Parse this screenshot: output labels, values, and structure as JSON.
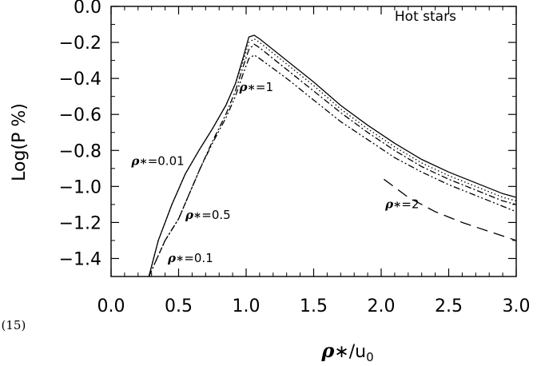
{
  "chart_data": {
    "type": "line",
    "xlabel": "ρ∗/u₀",
    "ylabel": "Log(P %)",
    "xlim": [
      0.0,
      3.0
    ],
    "ylim": [
      -1.5,
      0.0
    ],
    "xticks": [
      "0.0",
      "0.5",
      "1.0",
      "1.5",
      "2.0",
      "2.5",
      "3.0"
    ],
    "yticks": [
      "0.0",
      "−0.2",
      "−0.4",
      "−0.6",
      "−0.8",
      "−1.0",
      "−1.2",
      "−1.4"
    ],
    "grid": false,
    "annotations": [
      {
        "text": "Hot stars",
        "x": 2.1,
        "y": -0.08
      },
      {
        "sym": "ρ∗",
        "text": "=1",
        "x": 0.95,
        "y": -0.47
      },
      {
        "sym": "ρ∗",
        "text": "=0.01",
        "x": 0.15,
        "y": -0.88
      },
      {
        "sym": "ρ∗",
        "text": "=0.5",
        "x": 0.55,
        "y": -1.18
      },
      {
        "sym": "ρ∗",
        "text": "=0.1",
        "x": 0.42,
        "y": -1.42
      },
      {
        "sym": "ρ∗",
        "text": "=2",
        "x": 2.03,
        "y": -1.12
      }
    ],
    "stray_text": ", (15)",
    "series": [
      {
        "values_ref": "rho=0.01",
        "style": "solid",
        "points": [
          [
            0.28,
            -1.5
          ],
          [
            0.35,
            -1.3
          ],
          [
            0.45,
            -1.1
          ],
          [
            0.55,
            -0.93
          ],
          [
            0.65,
            -0.8
          ],
          [
            0.75,
            -0.68
          ],
          [
            0.85,
            -0.55
          ],
          [
            0.92,
            -0.43
          ],
          [
            0.98,
            -0.28
          ],
          [
            1.02,
            -0.17
          ],
          [
            1.06,
            -0.16
          ],
          [
            1.1,
            -0.18
          ],
          [
            1.3,
            -0.3
          ],
          [
            1.5,
            -0.42
          ],
          [
            1.7,
            -0.55
          ],
          [
            1.9,
            -0.66
          ],
          [
            2.1,
            -0.76
          ],
          [
            2.3,
            -0.85
          ],
          [
            2.5,
            -0.92
          ],
          [
            2.7,
            -0.98
          ],
          [
            2.9,
            -1.04
          ],
          [
            3.0,
            -1.06
          ]
        ]
      },
      {
        "values_ref": "rho=0.1",
        "style": "dotted",
        "points": [
          [
            0.28,
            -1.5
          ],
          [
            0.35,
            -1.3
          ],
          [
            0.45,
            -1.1
          ],
          [
            0.55,
            -0.93
          ],
          [
            0.65,
            -0.8
          ],
          [
            0.75,
            -0.68
          ],
          [
            0.85,
            -0.55
          ],
          [
            0.92,
            -0.43
          ],
          [
            0.98,
            -0.3
          ],
          [
            1.02,
            -0.2
          ],
          [
            1.06,
            -0.18
          ],
          [
            1.1,
            -0.2
          ],
          [
            1.3,
            -0.32
          ],
          [
            1.5,
            -0.44
          ],
          [
            1.7,
            -0.57
          ],
          [
            1.9,
            -0.68
          ],
          [
            2.1,
            -0.78
          ],
          [
            2.3,
            -0.87
          ],
          [
            2.5,
            -0.94
          ],
          [
            2.7,
            -1.0
          ],
          [
            2.9,
            -1.06
          ],
          [
            3.0,
            -1.08
          ]
        ]
      },
      {
        "values_ref": "rho=0.5",
        "style": "dash-dot",
        "points": [
          [
            0.28,
            -1.5
          ],
          [
            0.4,
            -1.3
          ],
          [
            0.5,
            -1.18
          ],
          [
            0.58,
            -1.04
          ],
          [
            0.66,
            -0.9
          ],
          [
            0.75,
            -0.75
          ],
          [
            0.85,
            -0.6
          ],
          [
            0.92,
            -0.47
          ],
          [
            0.98,
            -0.33
          ],
          [
            1.02,
            -0.24
          ],
          [
            1.06,
            -0.21
          ],
          [
            1.1,
            -0.23
          ],
          [
            1.3,
            -0.35
          ],
          [
            1.5,
            -0.47
          ],
          [
            1.7,
            -0.59
          ],
          [
            1.9,
            -0.7
          ],
          [
            2.1,
            -0.8
          ],
          [
            2.3,
            -0.89
          ],
          [
            2.5,
            -0.96
          ],
          [
            2.7,
            -1.02
          ],
          [
            2.9,
            -1.08
          ],
          [
            3.0,
            -1.1
          ]
        ]
      },
      {
        "values_ref": "rho=1",
        "style": "dash-dot-dot",
        "points": [
          [
            0.28,
            -1.5
          ],
          [
            0.4,
            -1.3
          ],
          [
            0.5,
            -1.18
          ],
          [
            0.58,
            -1.04
          ],
          [
            0.66,
            -0.9
          ],
          [
            0.75,
            -0.76
          ],
          [
            0.85,
            -0.62
          ],
          [
            0.92,
            -0.5
          ],
          [
            0.98,
            -0.37
          ],
          [
            1.02,
            -0.29
          ],
          [
            1.06,
            -0.27
          ],
          [
            1.1,
            -0.29
          ],
          [
            1.3,
            -0.4
          ],
          [
            1.5,
            -0.52
          ],
          [
            1.7,
            -0.64
          ],
          [
            1.9,
            -0.74
          ],
          [
            2.1,
            -0.84
          ],
          [
            2.3,
            -0.92
          ],
          [
            2.5,
            -0.99
          ],
          [
            2.7,
            -1.05
          ],
          [
            2.9,
            -1.11
          ],
          [
            3.0,
            -1.14
          ]
        ]
      },
      {
        "values_ref": "rho=2",
        "style": "dashed",
        "points": [
          [
            2.02,
            -0.96
          ],
          [
            2.2,
            -1.06
          ],
          [
            2.4,
            -1.14
          ],
          [
            2.6,
            -1.2
          ],
          [
            2.8,
            -1.25
          ],
          [
            3.0,
            -1.3
          ]
        ]
      }
    ]
  }
}
